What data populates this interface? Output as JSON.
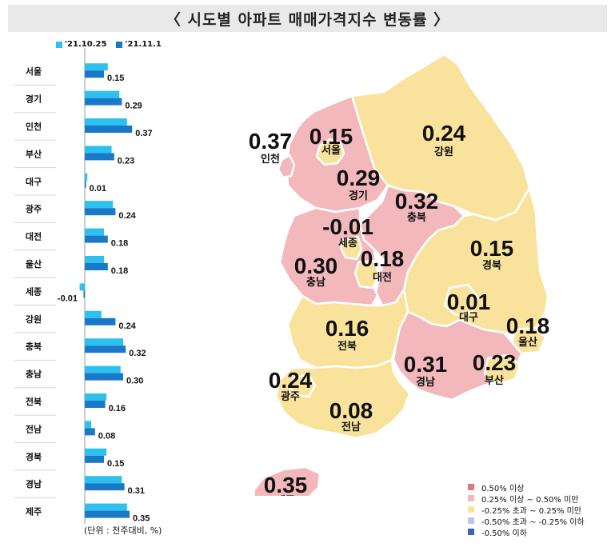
{
  "title": "〈 시도별 아파트 매매가격지수 변동률 〉",
  "colors": {
    "prev": "#2ec1f0",
    "curr": "#1a78c8",
    "pink": "#f2b8bc",
    "yellow": "#f9e39c",
    "border": "#ffffff"
  },
  "unit_note": "(단위 : 전주대비, %)",
  "chart_data": {
    "type": "bar",
    "orientation": "horizontal",
    "categories": [
      "서울",
      "경기",
      "인천",
      "부산",
      "대구",
      "광주",
      "대전",
      "울산",
      "세종",
      "강원",
      "충북",
      "충남",
      "전북",
      "전남",
      "경북",
      "경남",
      "제주"
    ],
    "series": [
      {
        "name": "'21.10.25",
        "values": [
          0.18,
          0.27,
          0.33,
          0.21,
          0.02,
          0.22,
          0.15,
          0.15,
          -0.04,
          0.13,
          0.3,
          0.28,
          0.17,
          0.05,
          0.17,
          0.29,
          0.33
        ]
      },
      {
        "name": "'21.11.1",
        "values": [
          0.15,
          0.29,
          0.37,
          0.23,
          0.01,
          0.24,
          0.18,
          0.18,
          -0.01,
          0.24,
          0.32,
          0.3,
          0.16,
          0.08,
          0.15,
          0.31,
          0.35
        ]
      }
    ],
    "value_labels": [
      "0.15",
      "0.29",
      "0.37",
      "0.23",
      "0.01",
      "0.24",
      "0.18",
      "0.18",
      "-0.01",
      "0.24",
      "0.32",
      "0.30",
      "0.16",
      "0.08",
      "0.15",
      "0.31",
      "0.35"
    ],
    "xlim": [
      -0.05,
      0.4
    ]
  },
  "map": {
    "regions": [
      {
        "name": "서울",
        "value": "0.15",
        "class": "yellow"
      },
      {
        "name": "인천",
        "value": "0.37",
        "class": "pink"
      },
      {
        "name": "경기",
        "value": "0.29",
        "class": "pink"
      },
      {
        "name": "강원",
        "value": "0.24",
        "class": "yellow"
      },
      {
        "name": "충북",
        "value": "0.32",
        "class": "pink"
      },
      {
        "name": "세종",
        "value": "-0.01",
        "class": "yellow"
      },
      {
        "name": "충남",
        "value": "0.30",
        "class": "pink"
      },
      {
        "name": "대전",
        "value": "0.18",
        "class": "yellow"
      },
      {
        "name": "경북",
        "value": "0.15",
        "class": "yellow"
      },
      {
        "name": "대구",
        "value": "0.01",
        "class": "yellow"
      },
      {
        "name": "울산",
        "value": "0.18",
        "class": "yellow"
      },
      {
        "name": "전북",
        "value": "0.16",
        "class": "yellow"
      },
      {
        "name": "경남",
        "value": "0.31",
        "class": "pink"
      },
      {
        "name": "부산",
        "value": "0.23",
        "class": "yellow"
      },
      {
        "name": "광주",
        "value": "0.24",
        "class": "yellow"
      },
      {
        "name": "전남",
        "value": "0.08",
        "class": "yellow"
      },
      {
        "name": "제주",
        "value": "0.35",
        "class": "pink"
      }
    ],
    "legend": [
      {
        "label": "0.50% 이상",
        "color": "#e07a80"
      },
      {
        "label": "0.25% 이상 ~ 0.50% 미만",
        "color": "#f2b8bc"
      },
      {
        "label": "-0.25% 초과 ~ 0.25% 미만",
        "color": "#f9e39c"
      },
      {
        "label": "-0.50% 초과 ~ -0.25% 이하",
        "color": "#b6c8e6"
      },
      {
        "label": "-0.50% 이하",
        "color": "#3a64b8"
      }
    ]
  }
}
